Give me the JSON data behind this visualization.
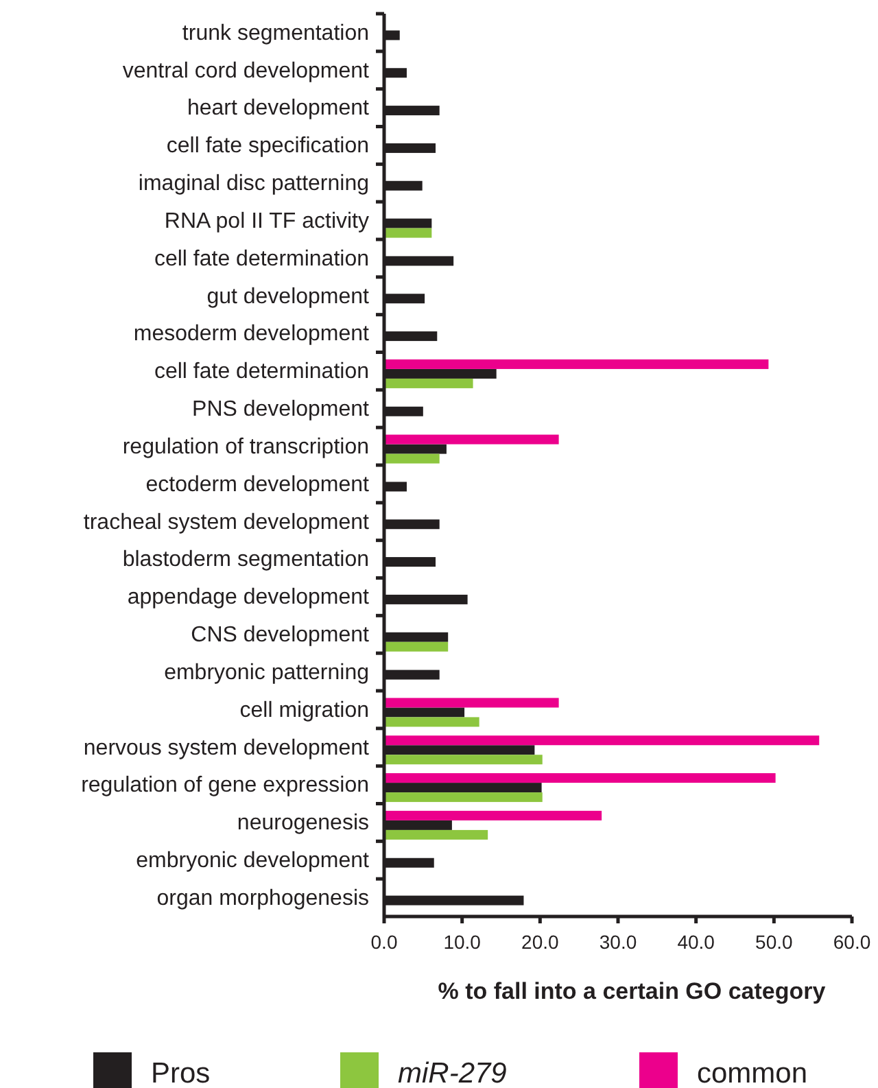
{
  "chart_data": {
    "type": "bar",
    "orientation": "horizontal",
    "xlabel": "% to fall into a certain GO category",
    "categories": [
      "trunk segmentation",
      "ventral cord development",
      "heart development",
      "cell fate specification",
      "imaginal disc patterning",
      "RNA pol II TF activity",
      "cell fate determination",
      "gut development",
      "mesoderm development",
      "cell fate determination",
      "PNS development",
      "regulation of transcription",
      "ectoderm development",
      "tracheal system development",
      "blastoderm segmentation",
      "appendage development",
      "CNS development",
      "embryonic patterning",
      "cell migration",
      "nervous system development",
      "regulation of gene expression",
      "neurogenesis",
      "embryonic development",
      "organ morphogenesis"
    ],
    "series": [
      {
        "name": "Pros",
        "color": "#231f20",
        "values": [
          2.0,
          2.9,
          7.1,
          6.6,
          4.9,
          6.1,
          8.9,
          5.2,
          6.8,
          14.4,
          5.0,
          8.0,
          2.9,
          7.1,
          6.6,
          10.7,
          8.2,
          7.1,
          10.3,
          19.3,
          20.2,
          8.7,
          6.4,
          17.9
        ]
      },
      {
        "name": "miR-279",
        "color": "#8dc63f",
        "values": [
          null,
          null,
          null,
          null,
          null,
          6.1,
          null,
          null,
          null,
          11.4,
          null,
          7.1,
          null,
          null,
          null,
          null,
          8.2,
          null,
          12.2,
          20.3,
          20.3,
          13.3,
          null,
          null
        ]
      },
      {
        "name": "common",
        "color": "#ec008c",
        "values": [
          null,
          null,
          null,
          null,
          null,
          null,
          null,
          null,
          null,
          49.3,
          null,
          22.4,
          null,
          null,
          null,
          null,
          null,
          null,
          22.4,
          55.8,
          50.2,
          27.9,
          null,
          null
        ]
      }
    ],
    "xlim": [
      0,
      60
    ],
    "xticks": [
      {
        "value": 0,
        "label": "0.0"
      },
      {
        "value": 10,
        "label": "10.0"
      },
      {
        "value": 20,
        "label": "20.0"
      },
      {
        "value": 30,
        "label": "30.0"
      },
      {
        "value": 40,
        "label": "40.0"
      },
      {
        "value": 50,
        "label": "50.0"
      },
      {
        "value": 60,
        "label": "60.0"
      }
    ],
    "legend": "bottom"
  }
}
